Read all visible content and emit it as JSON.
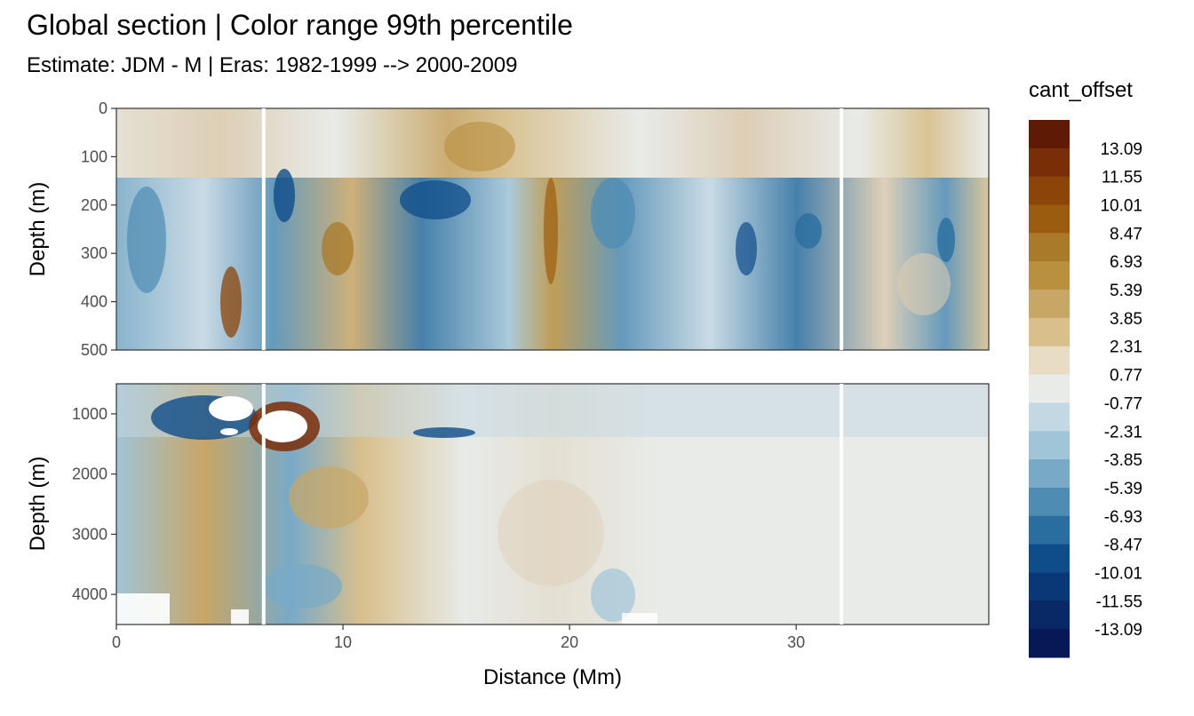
{
  "title": "Global section | Color range 99th percentile",
  "subtitle": "Estimate: JDM - M | Eras: 1982-1999 --> 2000-2009",
  "legend_title": "cant_offset",
  "chart_data": {
    "type": "heatmap",
    "xlabel": "Distance (Mm)",
    "ylabel": "Depth (m)",
    "xlim": [
      0,
      38.5
    ],
    "x_ticks": [
      "0",
      "10",
      "20",
      "30"
    ],
    "x_tick_values": [
      0,
      10,
      20,
      30
    ],
    "panels": [
      {
        "name": "upper",
        "ylim": [
          0,
          500
        ],
        "y_ticks": [
          "0",
          "100",
          "200",
          "300",
          "400",
          "500"
        ],
        "y_tick_values": [
          0,
          100,
          200,
          300,
          400,
          500
        ]
      },
      {
        "name": "lower",
        "ylim": [
          500,
          4500
        ],
        "y_ticks": [
          "1000",
          "2000",
          "3000",
          "4000"
        ],
        "y_tick_values": [
          1000,
          2000,
          3000,
          4000
        ]
      }
    ],
    "section_breaks_x": [
      6.5,
      32.0
    ],
    "legend": {
      "labels": [
        "13.09",
        "11.55",
        "10.01",
        "8.47",
        "6.93",
        "5.39",
        "3.85",
        "2.31",
        "0.77",
        "-0.77",
        "-2.31",
        "-3.85",
        "-5.39",
        "-6.93",
        "-8.47",
        "-10.01",
        "-11.55",
        "-13.09"
      ],
      "colors": [
        "#5f1a06",
        "#7a2e08",
        "#8c4408",
        "#9c5c10",
        "#a87a2a",
        "#b8903e",
        "#c8a666",
        "#d8bf8c",
        "#e8dcc4",
        "#e8ebe8",
        "#c4d8e4",
        "#a0c4d8",
        "#78aac8",
        "#4e8cb4",
        "#2a6ea0",
        "#0e4c8a",
        "#0a3876",
        "#082866",
        "#061855"
      ]
    }
  }
}
